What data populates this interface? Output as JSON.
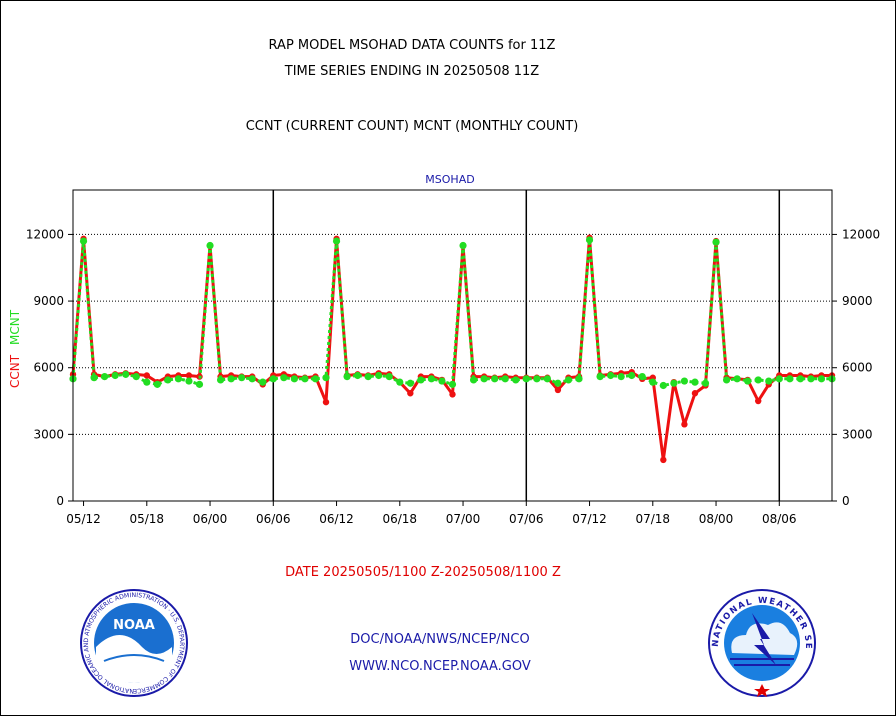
{
  "header": {
    "title1": "RAP MODEL MSOHAD DATA COUNTS for 11Z",
    "title2": "TIME SERIES ENDING IN 20250508 11Z",
    "title3": "CCNT (CURRENT COUNT) MCNT (MONTHLY COUNT)"
  },
  "footer": {
    "date_range": "DATE 20250505/1100 Z-20250508/1100 Z",
    "link1": "DOC/NOAA/NWS/NCEP/NCO",
    "link2": "WWW.NCO.NCEP.NOAA.GOV"
  },
  "logos": {
    "left": {
      "text": "NOAA",
      "ring_text": "NATIONAL OCEANIC AND ATMOSPHERIC ADMINISTRATION · U.S. DEPARTMENT OF COMMERCE"
    },
    "right": {
      "ring_text": "NATIONAL WEATHER SERVICE"
    }
  },
  "colors": {
    "ccnt": "#ee1111",
    "mcnt": "#22dd22",
    "panel_label": "#1a1aa8",
    "date_text": "#e00000"
  },
  "chart_data": {
    "type": "line",
    "panel_label": "MSOHAD",
    "ylabel_ccnt": "CCNT",
    "ylabel_mcnt": "MCNT",
    "ylim": [
      0,
      14000
    ],
    "y_ticks": [
      0,
      3000,
      6000,
      9000,
      12000
    ],
    "y_tick_labels": [
      "0",
      "3000",
      "6000",
      "9000",
      "12000"
    ],
    "x_tick_labels": [
      "05/12",
      "05/18",
      "06/00",
      "06/06",
      "06/12",
      "06/18",
      "07/00",
      "07/06",
      "07/12",
      "07/18",
      "08/00",
      "08/06"
    ],
    "x_tick_hours": [
      13,
      19,
      25,
      31,
      37,
      43,
      49,
      55,
      61,
      67,
      73,
      79
    ],
    "xlim_hours": [
      12,
      84
    ],
    "day_boundaries_hours": [
      31,
      55,
      79
    ],
    "grid": "horizontal dotted",
    "series": [
      {
        "name": "CCNT",
        "x": [
          12,
          13,
          14,
          15,
          16,
          17,
          18,
          19,
          20,
          21,
          22,
          23,
          24,
          25,
          26,
          27,
          28,
          29,
          30,
          31,
          32,
          33,
          34,
          35,
          36,
          37,
          38,
          39,
          40,
          41,
          42,
          43,
          44,
          45,
          46,
          47,
          48,
          49,
          50,
          51,
          52,
          53,
          54,
          55,
          56,
          57,
          58,
          59,
          60,
          61,
          62,
          63,
          64,
          65,
          66,
          67,
          68,
          69,
          70,
          71,
          72,
          73,
          74,
          75,
          76,
          77,
          78,
          79,
          80,
          81,
          82,
          83,
          84
        ],
        "values": [
          5700,
          11800,
          5700,
          5600,
          5700,
          5750,
          5700,
          5650,
          5350,
          5600,
          5650,
          5650,
          5600,
          11500,
          5600,
          5650,
          5600,
          5600,
          5250,
          5650,
          5700,
          5600,
          5550,
          5600,
          4450,
          11800,
          5650,
          5700,
          5650,
          5750,
          5700,
          5350,
          4850,
          5600,
          5600,
          5450,
          4800,
          11500,
          5600,
          5600,
          5550,
          5600,
          5550,
          5550,
          5550,
          5550,
          5000,
          5550,
          5600,
          11850,
          5650,
          5700,
          5750,
          5800,
          5500,
          5550,
          1850,
          5350,
          3450,
          4850,
          5200,
          11700,
          5550,
          5500,
          5450,
          4500,
          5250,
          5650,
          5650,
          5650,
          5600,
          5650,
          5650
        ]
      },
      {
        "name": "MCNT",
        "x": [
          12,
          13,
          14,
          15,
          16,
          17,
          18,
          19,
          20,
          21,
          22,
          23,
          24,
          25,
          26,
          27,
          28,
          29,
          30,
          31,
          32,
          33,
          34,
          35,
          36,
          37,
          38,
          39,
          40,
          41,
          42,
          43,
          44,
          45,
          46,
          47,
          48,
          49,
          50,
          51,
          52,
          53,
          54,
          55,
          56,
          57,
          58,
          59,
          60,
          61,
          62,
          63,
          64,
          65,
          66,
          67,
          68,
          69,
          70,
          71,
          72,
          73,
          74,
          75,
          76,
          77,
          78,
          79,
          80,
          81,
          82,
          83,
          84
        ],
        "values": [
          5500,
          11700,
          5550,
          5600,
          5650,
          5700,
          5600,
          5350,
          5250,
          5450,
          5500,
          5400,
          5250,
          11500,
          5450,
          5500,
          5550,
          5500,
          5350,
          5500,
          5550,
          5500,
          5500,
          5500,
          5550,
          11700,
          5600,
          5650,
          5600,
          5650,
          5600,
          5350,
          5300,
          5450,
          5500,
          5400,
          5250,
          11500,
          5450,
          5500,
          5500,
          5500,
          5450,
          5500,
          5500,
          5500,
          5300,
          5450,
          5500,
          11750,
          5600,
          5650,
          5600,
          5650,
          5600,
          5350,
          5200,
          5300,
          5400,
          5350,
          5300,
          11650,
          5450,
          5500,
          5400,
          5450,
          5400,
          5500,
          5500,
          5500,
          5500,
          5500,
          5500
        ]
      }
    ]
  }
}
